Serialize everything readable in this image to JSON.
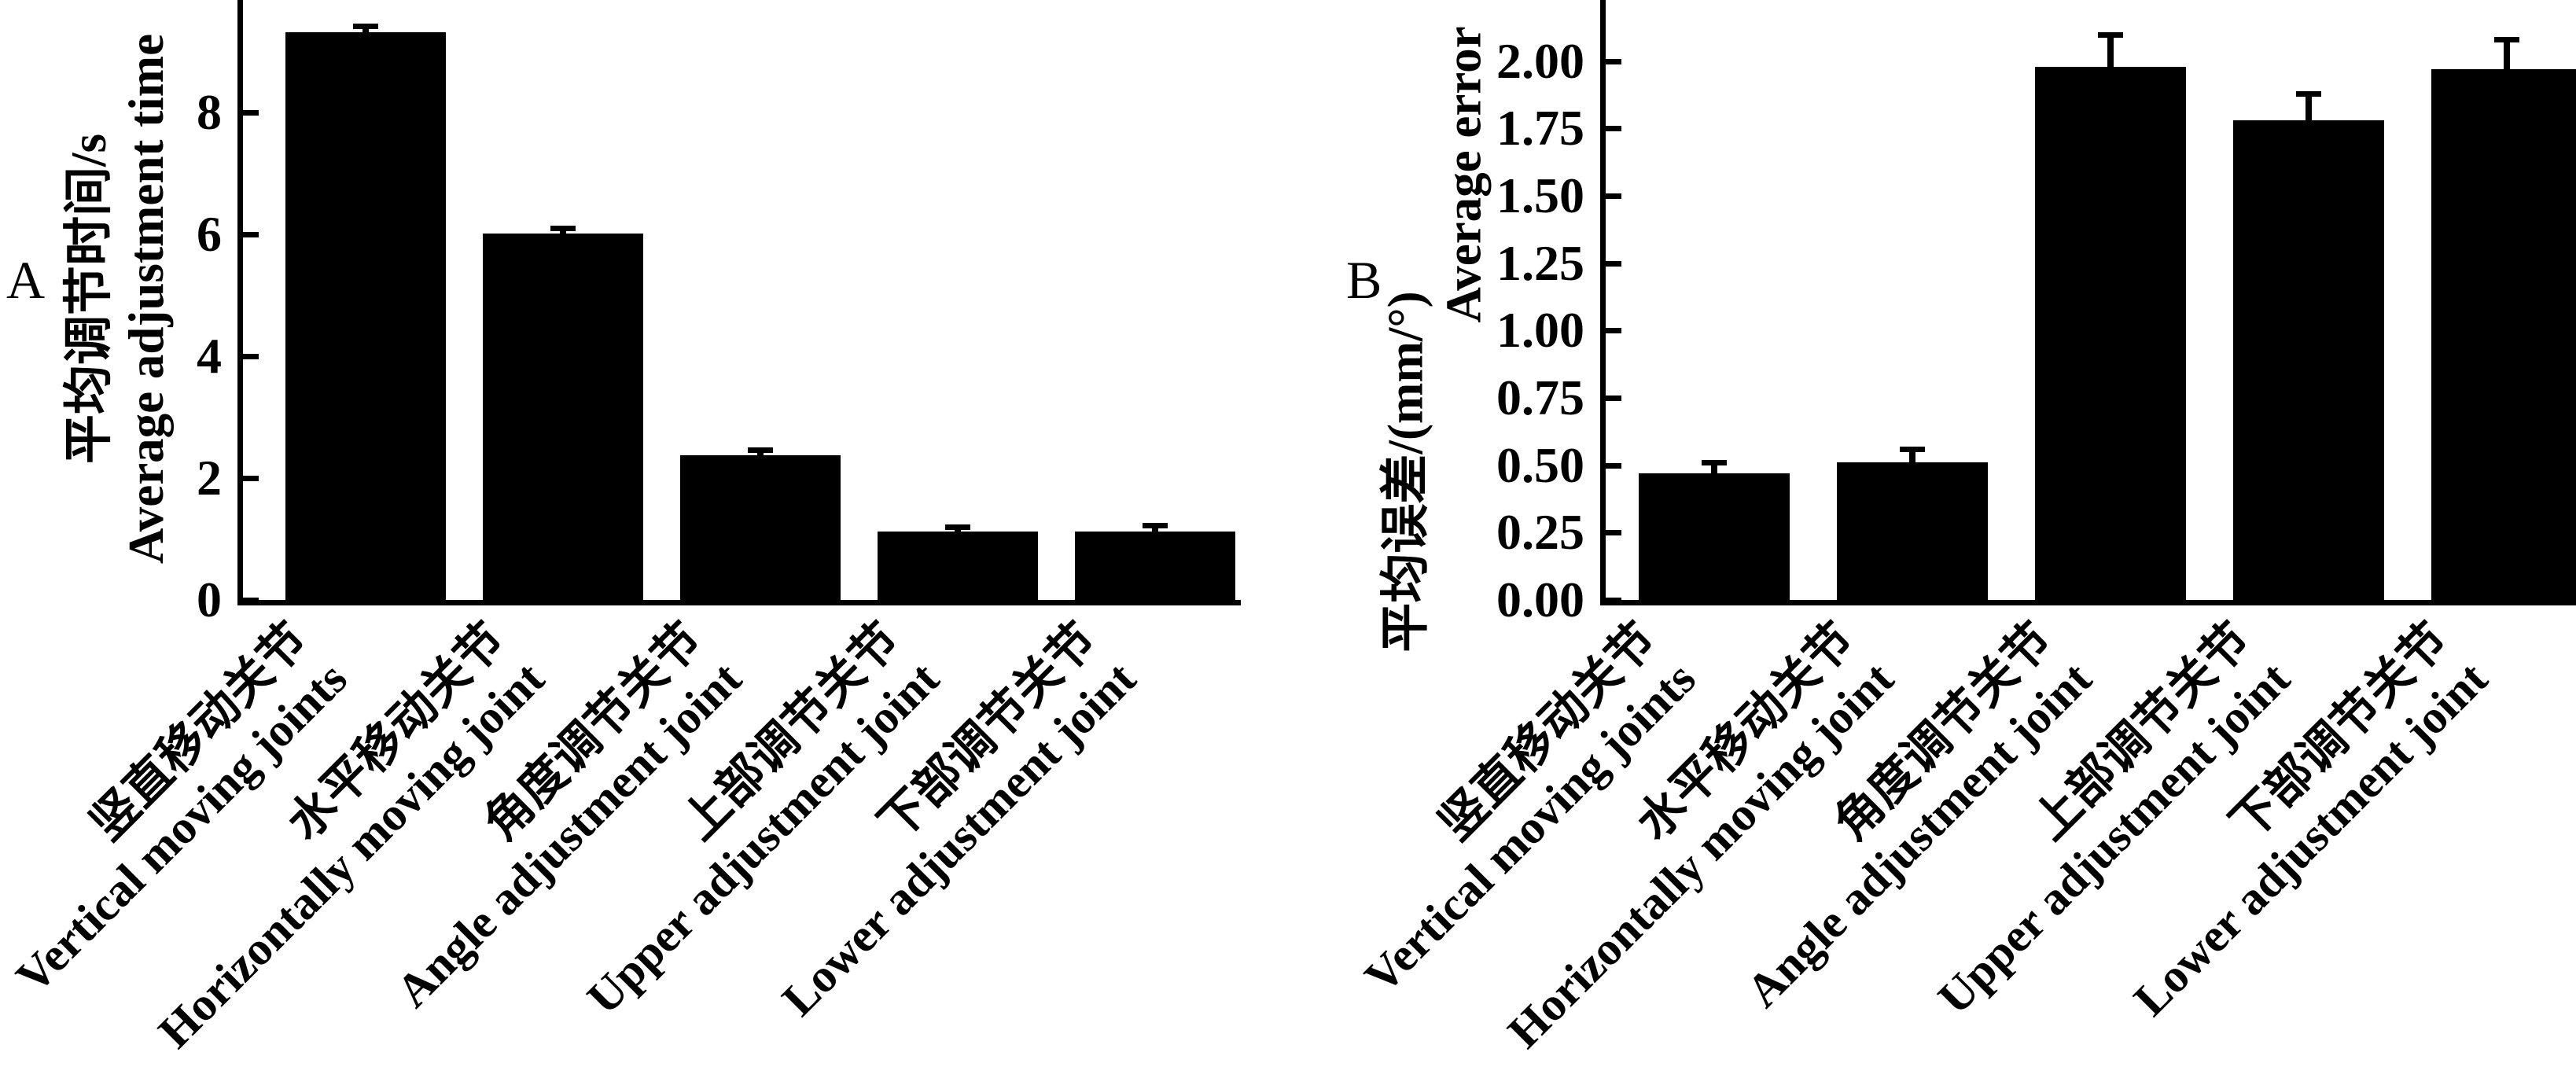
{
  "figure": {
    "background": "#ffffff",
    "text_color": "#000000"
  },
  "chart_data": [
    {
      "type": "bar",
      "panel_label": "A",
      "title": "",
      "xlabel": "",
      "ylabel_zh": "平均调节时间/s",
      "ylabel_en": "Average adjustment time",
      "categories_zh": [
        "竖直移动关节",
        "水平移动关节",
        "角度调节关节",
        "上部调节关节",
        "下部调节关节"
      ],
      "categories_en": [
        "Vertical moving joints",
        "Horizontally moving joint",
        "Angle adjustment joint",
        "Upper adjustment joint",
        "Lower adjustment joint"
      ],
      "values": [
        9.32,
        6.01,
        2.37,
        1.12,
        1.12
      ],
      "errors": [
        0.1,
        0.09,
        0.09,
        0.08,
        0.1
      ],
      "error_direction": "upper",
      "ytick_values": [
        0,
        2,
        4,
        6,
        8
      ],
      "ytick_labels": [
        "0",
        "2",
        "4",
        "6",
        "8"
      ],
      "ylim": [
        0,
        9.85
      ],
      "grid": false,
      "legend": "none",
      "bar_color": "#000000",
      "xtick_label_rotation_deg": 45
    },
    {
      "type": "bar",
      "panel_label": "B",
      "title": "",
      "xlabel": "",
      "ylabel_zh": "平均误差/(mm/°)",
      "ylabel_en": "Average error",
      "categories_zh": [
        "竖直移动关节",
        "水平移动关节",
        "角度调节关节",
        "上部调节关节",
        "下部调节关节"
      ],
      "categories_en": [
        "Vertical moving joints",
        "Horizontally moving joint",
        "Angle adjustment joint",
        "Upper adjustment joint",
        "Lower adjustment joint"
      ],
      "values": [
        0.47,
        0.51,
        1.98,
        1.78,
        1.97
      ],
      "errors": [
        0.04,
        0.05,
        0.12,
        0.1,
        0.11
      ],
      "error_direction": "upper",
      "ytick_values": [
        0,
        0.25,
        0.5,
        0.75,
        1.0,
        1.25,
        1.5,
        1.75,
        2.0
      ],
      "ytick_labels": [
        "0.00",
        "0.25",
        "0.50",
        "0.75",
        "1.00",
        "1.25",
        "1.50",
        "1.75",
        "2.00"
      ],
      "ylim": [
        0,
        2.23
      ],
      "grid": false,
      "legend": "none",
      "bar_color": "#000000",
      "xtick_label_rotation_deg": 45
    }
  ]
}
